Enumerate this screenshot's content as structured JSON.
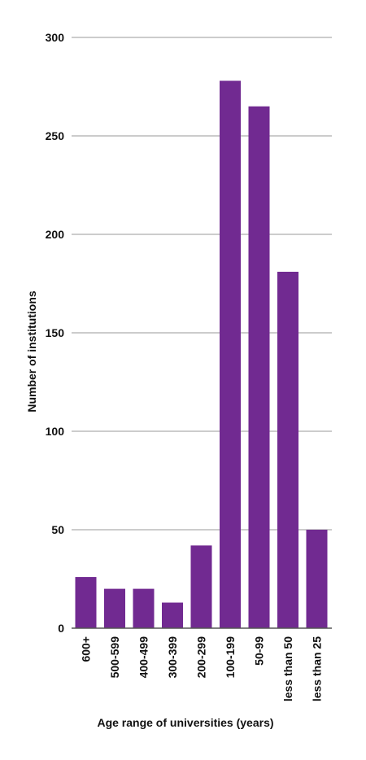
{
  "chart_data": {
    "type": "bar",
    "categories": [
      "600+",
      "500-599",
      "400-499",
      "300-399",
      "200-299",
      "100-199",
      "50-99",
      "less than 50",
      "less than 25"
    ],
    "values": [
      26,
      20,
      20,
      13,
      42,
      278,
      265,
      181,
      50
    ],
    "xlabel": "Age range of universities (years)",
    "ylabel": "Number of institutions",
    "ylim": [
      0,
      300
    ],
    "yticks": [
      0,
      50,
      100,
      150,
      200,
      250,
      300
    ],
    "grid": true,
    "bar_color": "#712a91",
    "grid_color": "#9a9a9a"
  }
}
